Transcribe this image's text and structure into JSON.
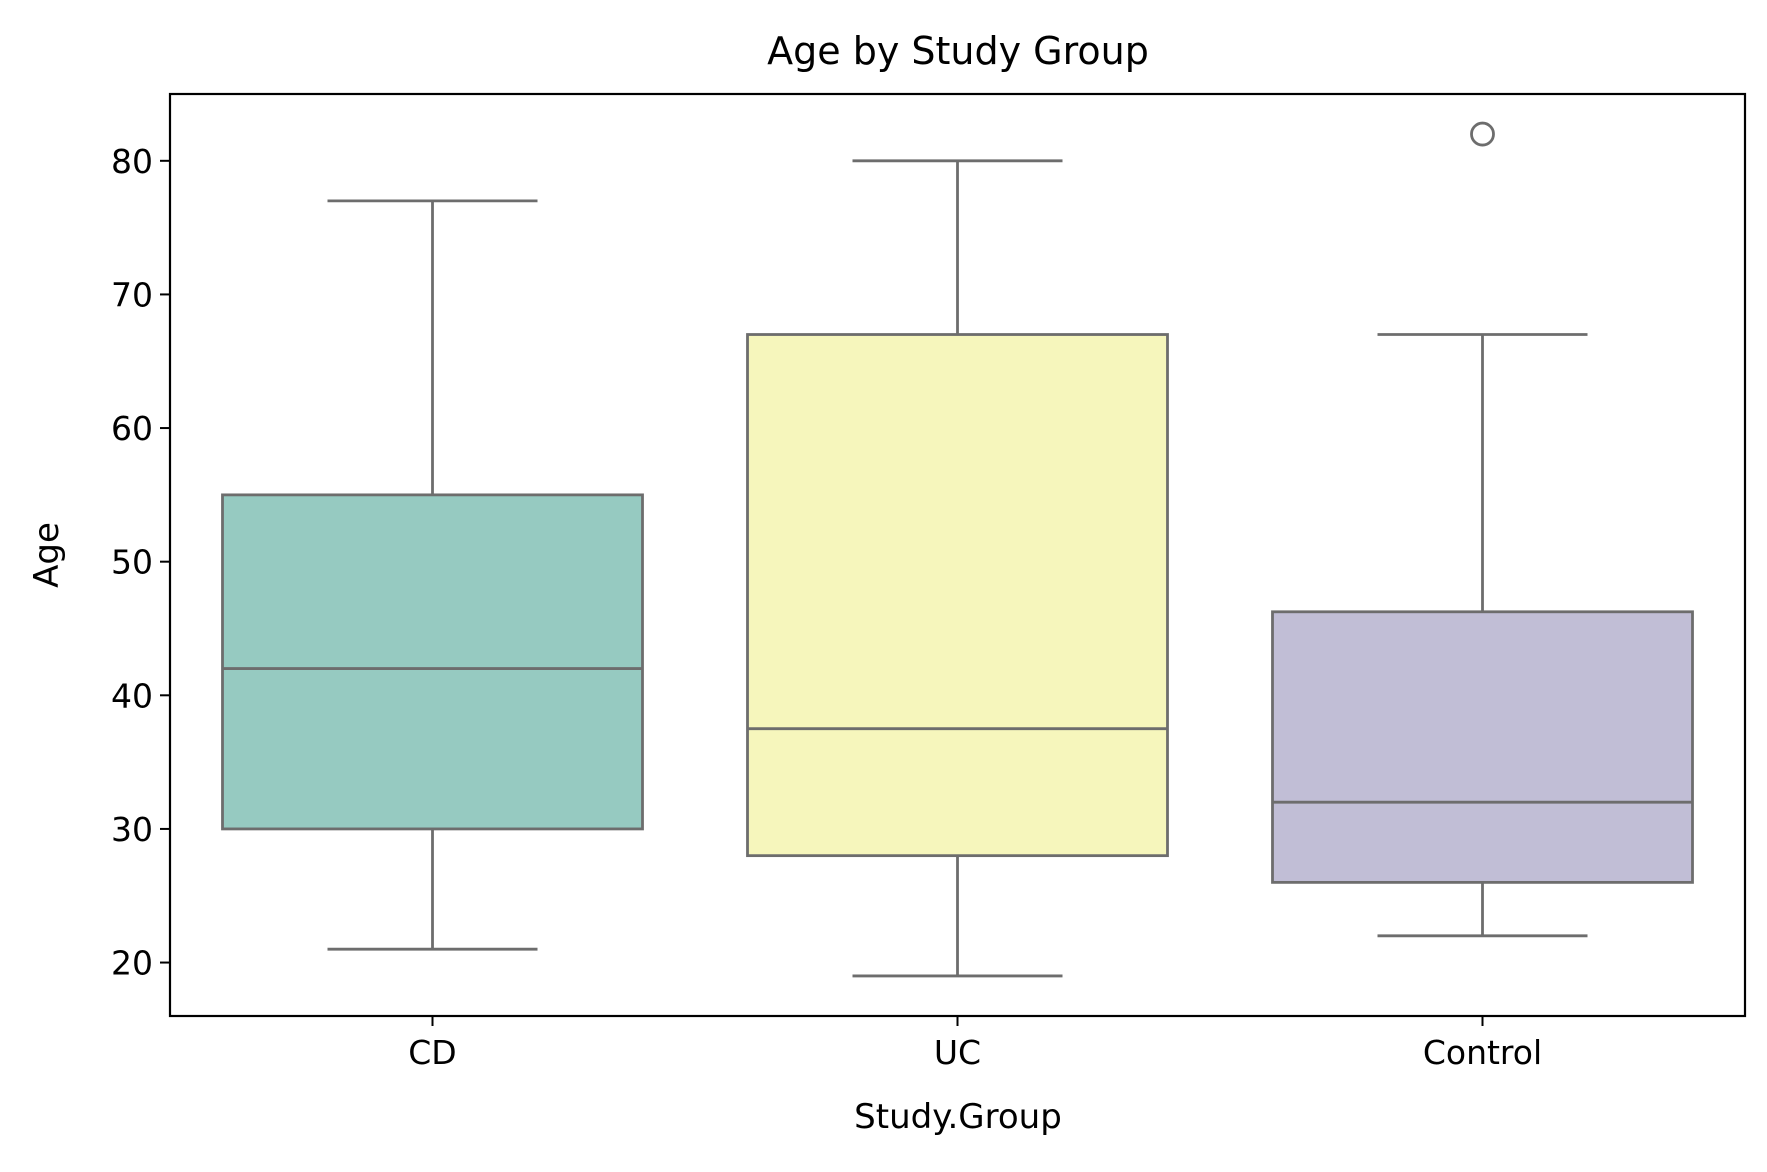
{
  "chart_data": {
    "type": "box",
    "title": "Age by Study Group",
    "xlabel": "Study.Group",
    "ylabel": "Age",
    "ylim": [
      16,
      85
    ],
    "yticks": [
      20,
      30,
      40,
      50,
      60,
      70,
      80
    ],
    "grid": false,
    "categories": [
      "CD",
      "UC",
      "Control"
    ],
    "boxes": [
      {
        "category": "CD",
        "whisker_low": 21,
        "q1": 30,
        "median": 42,
        "q3": 55,
        "whisker_high": 77,
        "outliers": [],
        "color": "#96cac1"
      },
      {
        "category": "UC",
        "whisker_low": 19,
        "q1": 28,
        "median": 37.5,
        "q3": 67,
        "whisker_high": 80,
        "outliers": [],
        "color": "#f6f6bc"
      },
      {
        "category": "Control",
        "whisker_low": 22,
        "q1": 26,
        "median": 32,
        "q3": 46.25,
        "whisker_high": 67,
        "outliers": [
          82
        ],
        "color": "#c1bed6"
      }
    ],
    "line_color": "#6d6d6d",
    "axis_color": "#000000"
  }
}
